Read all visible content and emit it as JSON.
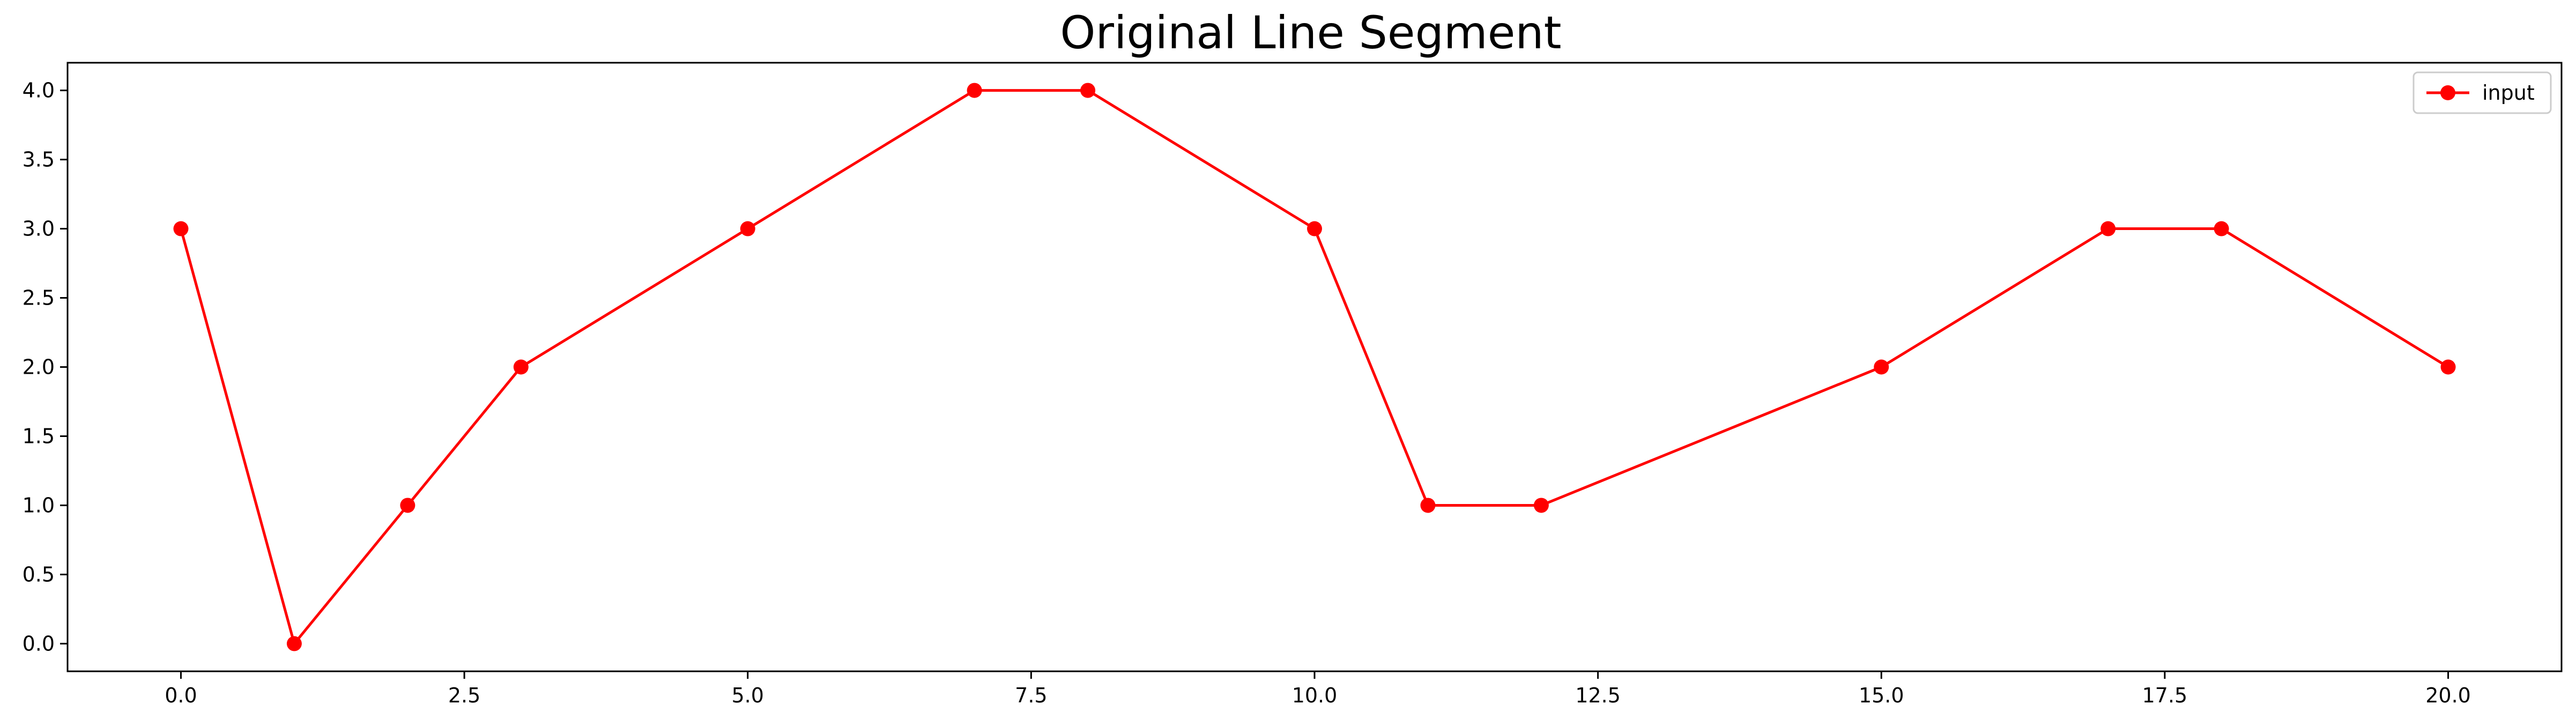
{
  "chart_data": {
    "type": "line",
    "title": "Original Line Segment",
    "xlabel": "",
    "ylabel": "",
    "xlim": [
      -1.0,
      21.0
    ],
    "ylim": [
      -0.2,
      4.2
    ],
    "xticks": [
      0.0,
      2.5,
      5.0,
      7.5,
      10.0,
      12.5,
      15.0,
      17.5,
      20.0
    ],
    "xtick_labels": [
      "0.0",
      "2.5",
      "5.0",
      "7.5",
      "10.0",
      "12.5",
      "15.0",
      "17.5",
      "20.0"
    ],
    "yticks": [
      0.0,
      0.5,
      1.0,
      1.5,
      2.0,
      2.5,
      3.0,
      3.5,
      4.0
    ],
    "ytick_labels": [
      "0.0",
      "0.5",
      "1.0",
      "1.5",
      "2.0",
      "2.5",
      "3.0",
      "3.5",
      "4.0"
    ],
    "grid": false,
    "legend_position": "top-right",
    "series": [
      {
        "name": "input",
        "color": "#ff0000",
        "marker": "circle",
        "x": [
          0,
          1,
          2,
          3,
          5,
          7,
          8,
          10,
          11,
          12,
          15,
          17,
          18,
          20
        ],
        "y": [
          3,
          0,
          1,
          2,
          3,
          4,
          4,
          3,
          1,
          1,
          2,
          3,
          3,
          2
        ]
      }
    ]
  }
}
